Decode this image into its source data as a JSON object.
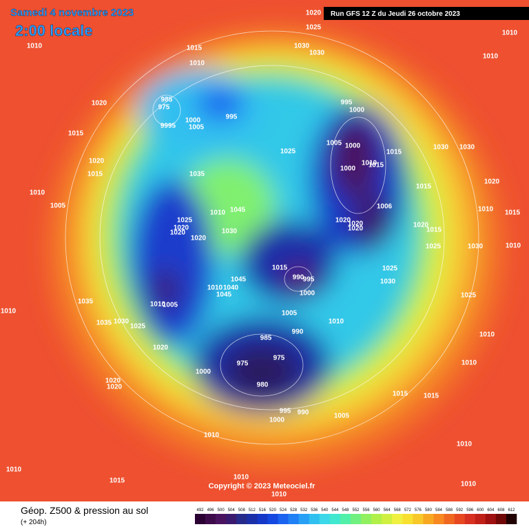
{
  "header": {
    "date": "Samedi 4 novembre 2023",
    "time": "2:00 locale",
    "run": "Run GFS 12 Z du Jeudi 26 octobre 2023"
  },
  "copyright": "Copyright © 2023 Meteociel.fr",
  "caption": {
    "title": "Géop. Z500 & pression au sol",
    "lead": "(+ 204h)"
  },
  "scale": {
    "labels": [
      "492",
      "496",
      "500",
      "504",
      "508",
      "512",
      "516",
      "520",
      "524",
      "528",
      "532",
      "536",
      "540",
      "544",
      "548",
      "552",
      "556",
      "560",
      "564",
      "568",
      "572",
      "576",
      "580",
      "584",
      "588",
      "592",
      "596",
      "600",
      "604",
      "608",
      "612"
    ],
    "colors": [
      "#2b0033",
      "#3d0a4a",
      "#4a1360",
      "#3a1a6e",
      "#262a8a",
      "#1a2fa8",
      "#1538c8",
      "#1448e0",
      "#1a63f0",
      "#2080f5",
      "#28a0f5",
      "#30c0f0",
      "#3ad8e8",
      "#40e8d0",
      "#50f0a8",
      "#70f080",
      "#90f060",
      "#b0f048",
      "#d0f040",
      "#f0f040",
      "#f8e030",
      "#f8c828",
      "#f8a820",
      "#f88820",
      "#f06820",
      "#e84820",
      "#d83020",
      "#c02018",
      "#a01010",
      "#700808",
      "#200000"
    ]
  },
  "pressure_labels": [
    "1020",
    "1025",
    "1030",
    "1030",
    "1010",
    "1010",
    "1010",
    "1015",
    "1010",
    "1020",
    "985",
    "975",
    "9995",
    "1000",
    "1005",
    "995",
    "995",
    "1000",
    "1005",
    "1000",
    "1015",
    "1010",
    "1015",
    "1000",
    "1025",
    "1030",
    "1030",
    "1020",
    "1015",
    "1020",
    "1015",
    "1010",
    "1005",
    "1035",
    "1045",
    "1010",
    "1025",
    "1020",
    "1020",
    "1030",
    "1020",
    "1006",
    "1020",
    "1020",
    "1020",
    "1015",
    "1010",
    "1015",
    "1020",
    "1015",
    "1025",
    "1030",
    "1010",
    "1025",
    "1030",
    "1015",
    "990",
    "995",
    "1000",
    "1045",
    "1040",
    "1045",
    "1010",
    "1010",
    "1005",
    "1035",
    "1010",
    "1025",
    "1005",
    "1010",
    "990",
    "985",
    "1035",
    "1030",
    "1025",
    "1020",
    "1010",
    "975",
    "975",
    "1000",
    "1010",
    "980",
    "1020",
    "1020",
    "1015",
    "1015",
    "995",
    "990",
    "1005",
    "1000",
    "1010",
    "1010",
    "1010",
    "1015",
    "1010",
    "1010",
    "1010"
  ]
}
